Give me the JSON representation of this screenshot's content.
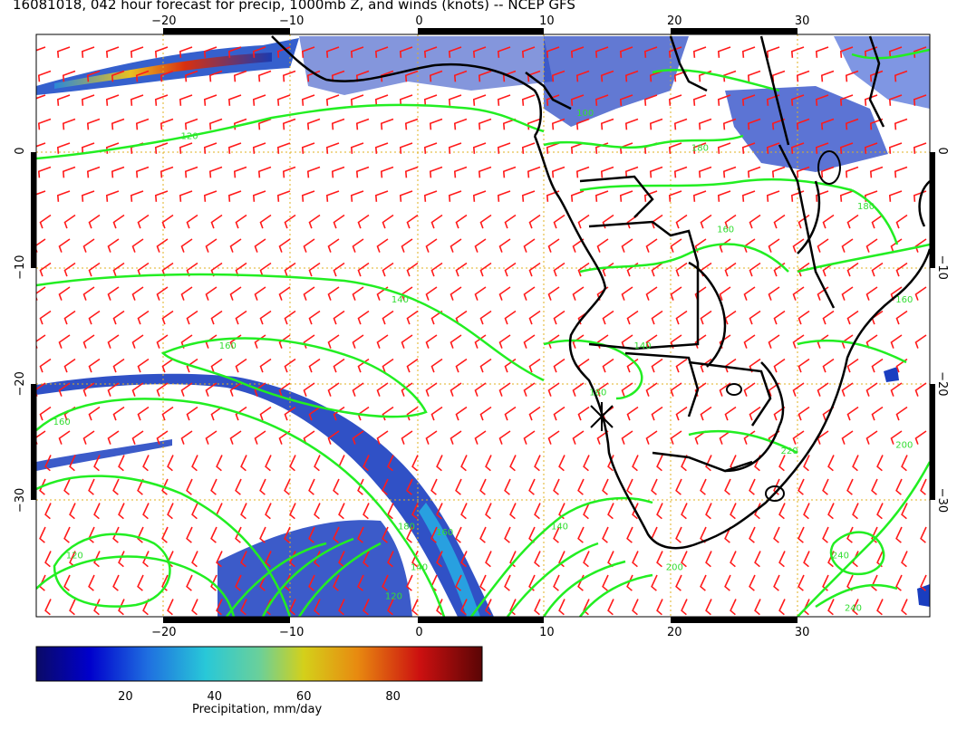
{
  "title": "16081018, 042 hour forecast for precip, 1000mb Z, and winds (knots) -- NCEP GFS",
  "colors": {
    "wind_barbs": "#ff1a1a",
    "height_contours": "#22ee22",
    "coastlines": "#000000",
    "gridlines": "#e0b020",
    "frame": "#000000"
  },
  "map": {
    "lon_range": [
      -30,
      40
    ],
    "lat_range": [
      -40,
      10
    ],
    "lon_ticks": [
      {
        "value": -20,
        "label": "−20"
      },
      {
        "value": -10,
        "label": "−10"
      },
      {
        "value": 0,
        "label": "0"
      },
      {
        "value": 10,
        "label": "10"
      },
      {
        "value": 20,
        "label": "20"
      },
      {
        "value": 30,
        "label": "30"
      }
    ],
    "lat_ticks": [
      {
        "value": 0,
        "label": "0"
      },
      {
        "value": -10,
        "label": "−10"
      },
      {
        "value": -20,
        "label": "−20"
      },
      {
        "value": -30,
        "label": "−30"
      }
    ],
    "contour_labels": [
      {
        "text": "120",
        "lon": -18,
        "lat": 1
      },
      {
        "text": "140",
        "lon": -1.5,
        "lat": -13
      },
      {
        "text": "160",
        "lon": -15,
        "lat": -17
      },
      {
        "text": "160",
        "lon": -28,
        "lat": -23.5
      },
      {
        "text": "120",
        "lon": -27,
        "lat": -35
      },
      {
        "text": "140",
        "lon": 0,
        "lat": -36
      },
      {
        "text": "120",
        "lon": -2,
        "lat": -38.5
      },
      {
        "text": "140",
        "lon": 11,
        "lat": -32.5
      },
      {
        "text": "160",
        "lon": 2,
        "lat": -33
      },
      {
        "text": "180",
        "lon": -1,
        "lat": -32.5
      },
      {
        "text": "180",
        "lon": 14,
        "lat": -21
      },
      {
        "text": "140",
        "lon": 17.5,
        "lat": -17
      },
      {
        "text": "160",
        "lon": 24,
        "lat": -7
      },
      {
        "text": "180",
        "lon": 35,
        "lat": -5
      },
      {
        "text": "160",
        "lon": 38,
        "lat": -13
      },
      {
        "text": "200",
        "lon": 38,
        "lat": -25.5
      },
      {
        "text": "220",
        "lon": 29,
        "lat": -26
      },
      {
        "text": "200",
        "lon": 20,
        "lat": -36
      },
      {
        "text": "240",
        "lon": 33,
        "lat": -35
      },
      {
        "text": "240",
        "lon": 34,
        "lat": -39.5
      },
      {
        "text": "100",
        "lon": 13,
        "lat": 3
      },
      {
        "text": "180",
        "lon": 22,
        "lat": 0
      }
    ]
  },
  "colorbar": {
    "title": "Precipitation, mm/day",
    "ticks": [
      {
        "value": 20,
        "label": "20"
      },
      {
        "value": 40,
        "label": "40"
      },
      {
        "value": 60,
        "label": "60"
      },
      {
        "value": 80,
        "label": "80"
      }
    ],
    "range": [
      0,
      100
    ]
  }
}
